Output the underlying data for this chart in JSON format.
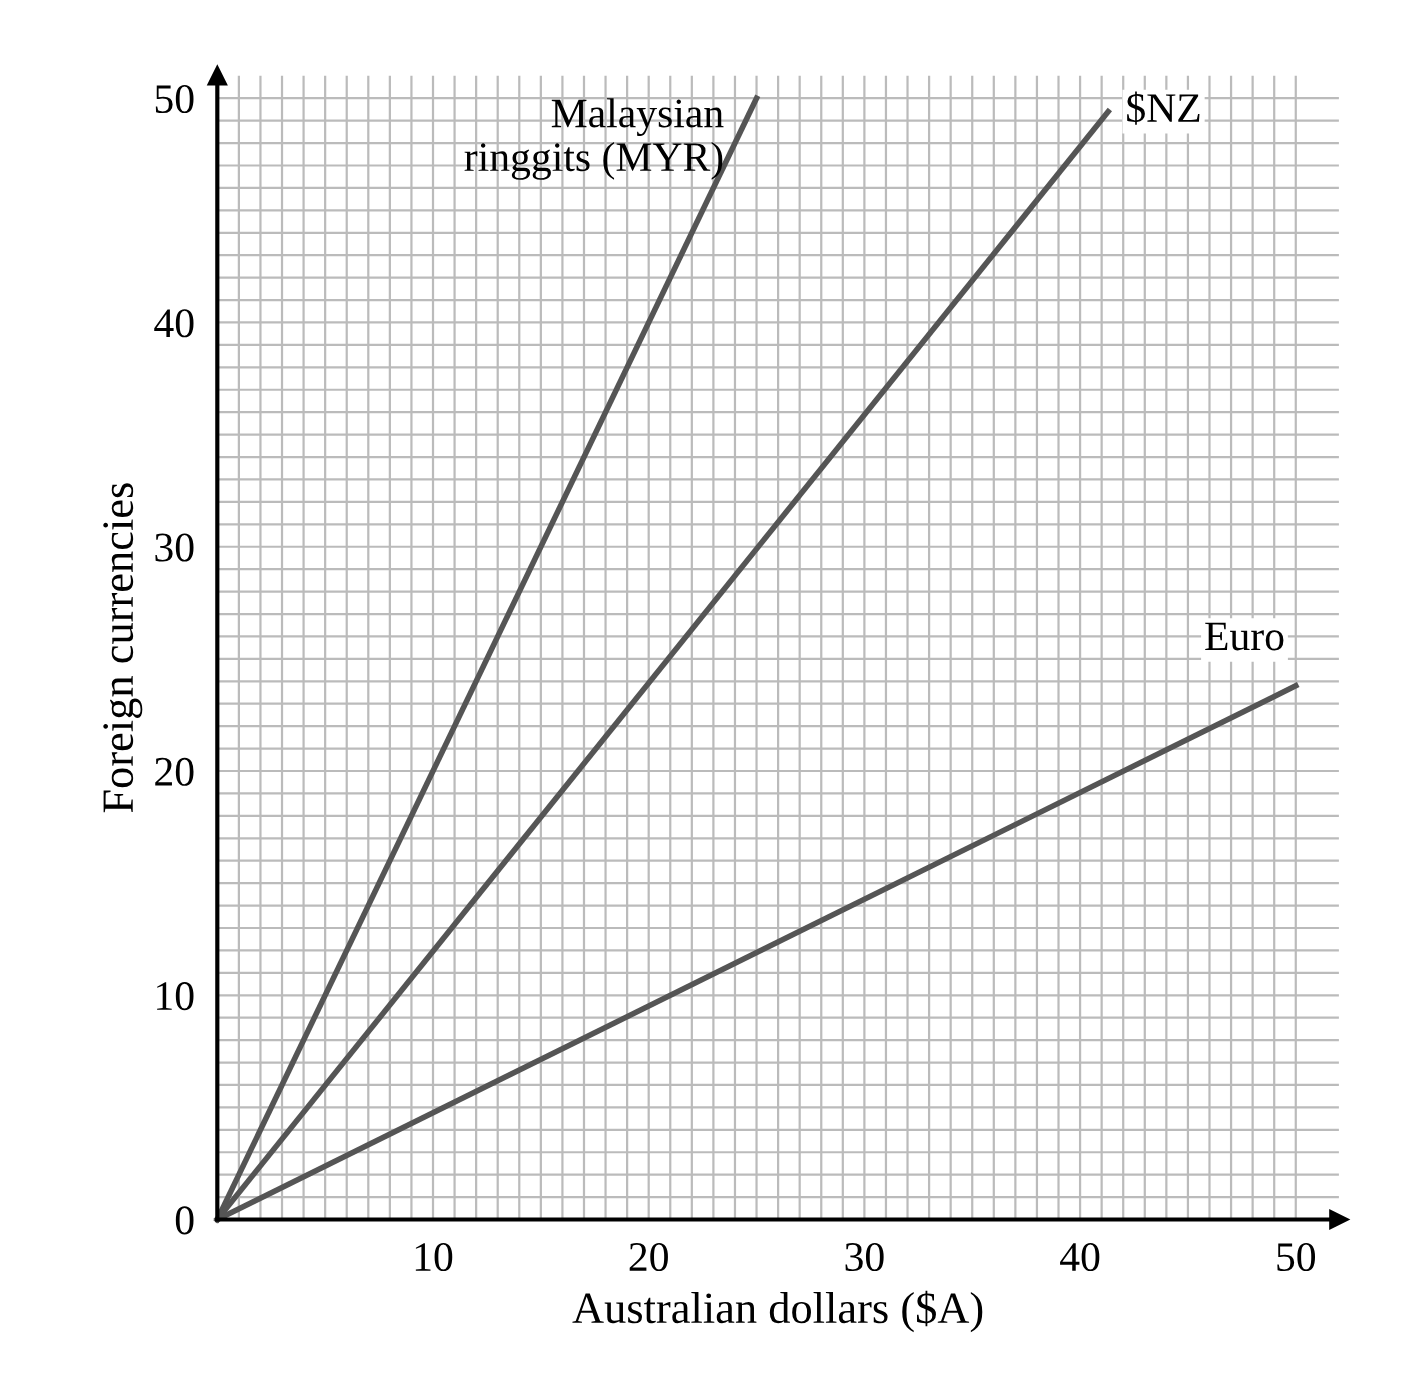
{
  "chart_data": {
    "type": "line",
    "xlabel": "Australian dollars ($A)",
    "ylabel": "Foreign currencies",
    "xlim": [
      0,
      52
    ],
    "ylim": [
      0,
      51
    ],
    "xticks": [
      {
        "value": 0,
        "label": null
      },
      {
        "value": 1,
        "label": null
      },
      {
        "value": 2,
        "label": null
      },
      {
        "value": 3,
        "label": null
      },
      {
        "value": 4,
        "label": null
      },
      {
        "value": 5,
        "label": null
      },
      {
        "value": 6,
        "label": null
      },
      {
        "value": 7,
        "label": null
      },
      {
        "value": 8,
        "label": null
      },
      {
        "value": 9,
        "label": null
      },
      10,
      {
        "value": 11,
        "label": null
      },
      {
        "value": 12,
        "label": null
      },
      {
        "value": 13,
        "label": null
      },
      {
        "value": 14,
        "label": null
      },
      {
        "value": 15,
        "label": null
      },
      {
        "value": 16,
        "label": null
      },
      {
        "value": 17,
        "label": null
      },
      {
        "value": 18,
        "label": null
      },
      {
        "value": 19,
        "label": null
      },
      20,
      {
        "value": 21,
        "label": null
      },
      {
        "value": 22,
        "label": null
      },
      {
        "value": 23,
        "label": null
      },
      {
        "value": 24,
        "label": null
      },
      {
        "value": 25,
        "label": null
      },
      {
        "value": 26,
        "label": null
      },
      {
        "value": 27,
        "label": null
      },
      {
        "value": 28,
        "label": null
      },
      {
        "value": 29,
        "label": null
      },
      30,
      {
        "value": 31,
        "label": null
      },
      {
        "value": 32,
        "label": null
      },
      {
        "value": 33,
        "label": null
      },
      {
        "value": 34,
        "label": null
      },
      {
        "value": 35,
        "label": null
      },
      {
        "value": 36,
        "label": null
      },
      {
        "value": 37,
        "label": null
      },
      {
        "value": 38,
        "label": null
      },
      {
        "value": 39,
        "label": null
      },
      40,
      {
        "value": 41,
        "label": null
      },
      {
        "value": 42,
        "label": null
      },
      {
        "value": 43,
        "label": null
      },
      {
        "value": 44,
        "label": null
      },
      {
        "value": 45,
        "label": null
      },
      {
        "value": 46,
        "label": null
      },
      {
        "value": 47,
        "label": null
      },
      {
        "value": 48,
        "label": null
      },
      {
        "value": 49,
        "label": null
      },
      50
    ],
    "yticks": [
      0,
      {
        "value": 1,
        "label": null
      },
      {
        "value": 2,
        "label": null
      },
      {
        "value": 3,
        "label": null
      },
      {
        "value": 4,
        "label": null
      },
      {
        "value": 5,
        "label": null
      },
      {
        "value": 6,
        "label": null
      },
      {
        "value": 7,
        "label": null
      },
      {
        "value": 8,
        "label": null
      },
      {
        "value": 9,
        "label": null
      },
      10,
      {
        "value": 11,
        "label": null
      },
      {
        "value": 12,
        "label": null
      },
      {
        "value": 13,
        "label": null
      },
      {
        "value": 14,
        "label": null
      },
      {
        "value": 15,
        "label": null
      },
      {
        "value": 16,
        "label": null
      },
      {
        "value": 17,
        "label": null
      },
      {
        "value": 18,
        "label": null
      },
      {
        "value": 19,
        "label": null
      },
      20,
      {
        "value": 21,
        "label": null
      },
      {
        "value": 22,
        "label": null
      },
      {
        "value": 23,
        "label": null
      },
      {
        "value": 24,
        "label": null
      },
      {
        "value": 25,
        "label": null
      },
      {
        "value": 26,
        "label": null
      },
      {
        "value": 27,
        "label": null
      },
      {
        "value": 28,
        "label": null
      },
      {
        "value": 29,
        "label": null
      },
      30,
      {
        "value": 31,
        "label": null
      },
      {
        "value": 32,
        "label": null
      },
      {
        "value": 33,
        "label": null
      },
      {
        "value": 34,
        "label": null
      },
      {
        "value": 35,
        "label": null
      },
      {
        "value": 36,
        "label": null
      },
      {
        "value": 37,
        "label": null
      },
      {
        "value": 38,
        "label": null
      },
      {
        "value": 39,
        "label": null
      },
      40,
      {
        "value": 41,
        "label": null
      },
      {
        "value": 42,
        "label": null
      },
      {
        "value": 43,
        "label": null
      },
      {
        "value": 44,
        "label": null
      },
      {
        "value": 45,
        "label": null
      },
      {
        "value": 46,
        "label": null
      },
      {
        "value": 47,
        "label": null
      },
      {
        "value": 48,
        "label": null
      },
      {
        "value": 49,
        "label": null
      },
      50
    ],
    "grid": true,
    "marker": "none",
    "line_style": "solid",
    "series": [
      {
        "name": "Malaysian\nringgits (MYR)",
        "color": "#555555",
        "x": [
          0,
          25
        ],
        "values": [
          0,
          50
        ]
      },
      {
        "name": "$NZ",
        "color": "#555555",
        "x": [
          0,
          41.3
        ],
        "values": [
          0,
          49.4
        ]
      },
      {
        "name": "Euro",
        "color": "#555555",
        "x": [
          0,
          50
        ],
        "values": [
          0,
          23.8
        ]
      }
    ]
  }
}
